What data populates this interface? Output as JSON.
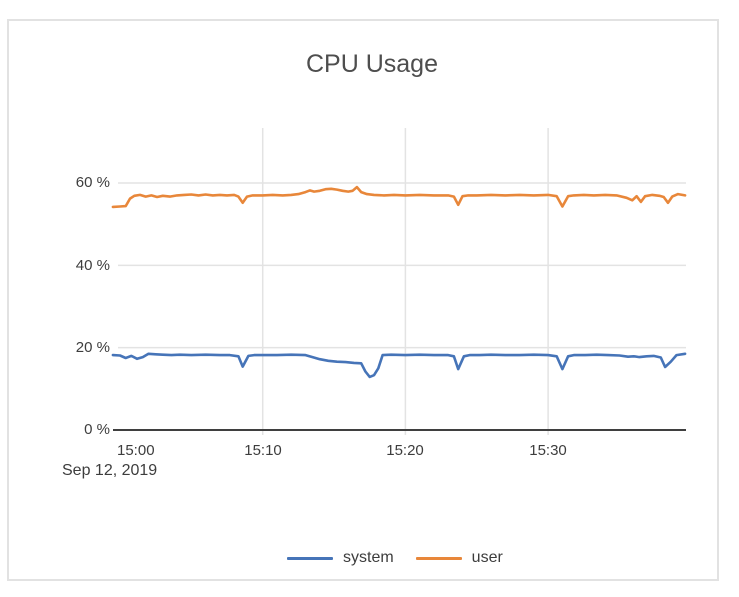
{
  "panel": {
    "background": "#ffffff",
    "border_color": "#e2e2e2"
  },
  "chart_data": {
    "type": "line",
    "title": "CPU Usage",
    "xlabel": "",
    "ylabel": "",
    "date_label": "Sep 12, 2019",
    "grid": true,
    "legend_position": "bottom",
    "ylim": [
      0,
      65
    ],
    "x_range_minutes_from_15_00": [
      -0.5,
      39.6
    ],
    "x_ticks": [
      {
        "t": 0,
        "label": "15:00"
      },
      {
        "t": 10,
        "label": "15:10"
      },
      {
        "t": 20,
        "label": "15:20"
      },
      {
        "t": 30,
        "label": "15:30"
      }
    ],
    "y_ticks": [
      {
        "v": 0,
        "label": "0 %"
      },
      {
        "v": 20,
        "label": "20 %"
      },
      {
        "v": 40,
        "label": "40 %"
      },
      {
        "v": 60,
        "label": "60 %"
      }
    ],
    "axis_color": "#3f3f3f",
    "gridline_color": "#e3e3e3",
    "series": [
      {
        "name": "system",
        "color": "#4674b8",
        "points": [
          [
            -0.5,
            18.2
          ],
          [
            0,
            18.1
          ],
          [
            0.4,
            17.5
          ],
          [
            0.8,
            18.0
          ],
          [
            1.2,
            17.3
          ],
          [
            1.6,
            17.7
          ],
          [
            2,
            18.5
          ],
          [
            2.5,
            18.4
          ],
          [
            3,
            18.3
          ],
          [
            3.6,
            18.2
          ],
          [
            4.2,
            18.3
          ],
          [
            5,
            18.2
          ],
          [
            6,
            18.3
          ],
          [
            7,
            18.2
          ],
          [
            7.7,
            18.2
          ],
          [
            8.3,
            17.9
          ],
          [
            8.6,
            15.4
          ],
          [
            9,
            18.0
          ],
          [
            9.4,
            18.2
          ],
          [
            10,
            18.2
          ],
          [
            11,
            18.2
          ],
          [
            12,
            18.3
          ],
          [
            13,
            18.2
          ],
          [
            13.4,
            17.8
          ],
          [
            14,
            17.2
          ],
          [
            14.6,
            16.8
          ],
          [
            15.2,
            16.6
          ],
          [
            15.8,
            16.5
          ],
          [
            16.4,
            16.3
          ],
          [
            16.9,
            16.2
          ],
          [
            17.2,
            14.2
          ],
          [
            17.5,
            12.9
          ],
          [
            17.8,
            13.3
          ],
          [
            18.1,
            15.0
          ],
          [
            18.4,
            18.2
          ],
          [
            19,
            18.3
          ],
          [
            20,
            18.2
          ],
          [
            21,
            18.3
          ],
          [
            22,
            18.2
          ],
          [
            23,
            18.2
          ],
          [
            23.4,
            17.9
          ],
          [
            23.7,
            14.8
          ],
          [
            24.1,
            17.9
          ],
          [
            24.5,
            18.2
          ],
          [
            25.2,
            18.2
          ],
          [
            26,
            18.3
          ],
          [
            27,
            18.2
          ],
          [
            28,
            18.2
          ],
          [
            29,
            18.3
          ],
          [
            30,
            18.2
          ],
          [
            30.6,
            17.9
          ],
          [
            31,
            14.8
          ],
          [
            31.4,
            17.9
          ],
          [
            31.8,
            18.2
          ],
          [
            32.6,
            18.2
          ],
          [
            33.4,
            18.3
          ],
          [
            34.2,
            18.2
          ],
          [
            35,
            18.1
          ],
          [
            35.6,
            17.8
          ],
          [
            36,
            17.9
          ],
          [
            36.4,
            17.7
          ],
          [
            36.9,
            17.9
          ],
          [
            37.4,
            18.0
          ],
          [
            37.9,
            17.6
          ],
          [
            38.2,
            15.3
          ],
          [
            38.6,
            16.6
          ],
          [
            39,
            18.2
          ],
          [
            39.6,
            18.5
          ]
        ]
      },
      {
        "name": "user",
        "color": "#e8873a",
        "points": [
          [
            -0.5,
            54.2
          ],
          [
            0,
            54.3
          ],
          [
            0.4,
            54.4
          ],
          [
            0.7,
            56.2
          ],
          [
            1,
            56.9
          ],
          [
            1.4,
            57.1
          ],
          [
            1.8,
            56.7
          ],
          [
            2.2,
            57.0
          ],
          [
            2.6,
            56.6
          ],
          [
            3,
            56.9
          ],
          [
            3.5,
            56.7
          ],
          [
            4,
            57.0
          ],
          [
            4.5,
            57.1
          ],
          [
            5,
            57.2
          ],
          [
            5.5,
            57.0
          ],
          [
            6,
            57.2
          ],
          [
            6.5,
            57.0
          ],
          [
            7,
            57.1
          ],
          [
            7.5,
            57.0
          ],
          [
            8,
            57.1
          ],
          [
            8.3,
            56.7
          ],
          [
            8.6,
            55.2
          ],
          [
            8.9,
            56.7
          ],
          [
            9.3,
            57.0
          ],
          [
            10,
            57.0
          ],
          [
            10.7,
            57.1
          ],
          [
            11.4,
            57.0
          ],
          [
            12,
            57.1
          ],
          [
            12.5,
            57.3
          ],
          [
            13,
            57.8
          ],
          [
            13.3,
            58.2
          ],
          [
            13.6,
            57.9
          ],
          [
            14,
            58.1
          ],
          [
            14.4,
            58.5
          ],
          [
            14.8,
            58.6
          ],
          [
            15.2,
            58.4
          ],
          [
            15.6,
            58.1
          ],
          [
            16,
            57.9
          ],
          [
            16.3,
            58.1
          ],
          [
            16.6,
            59.0
          ],
          [
            16.9,
            57.8
          ],
          [
            17.3,
            57.3
          ],
          [
            17.8,
            57.1
          ],
          [
            18.5,
            57.0
          ],
          [
            19.2,
            57.1
          ],
          [
            20,
            57.0
          ],
          [
            21,
            57.1
          ],
          [
            22,
            57.0
          ],
          [
            23,
            57.0
          ],
          [
            23.4,
            56.7
          ],
          [
            23.7,
            54.7
          ],
          [
            24,
            56.8
          ],
          [
            24.4,
            57.0
          ],
          [
            25,
            57.0
          ],
          [
            26,
            57.1
          ],
          [
            27,
            57.0
          ],
          [
            28,
            57.1
          ],
          [
            29,
            57.0
          ],
          [
            30,
            57.1
          ],
          [
            30.6,
            56.8
          ],
          [
            31,
            54.3
          ],
          [
            31.4,
            56.8
          ],
          [
            31.8,
            57.0
          ],
          [
            32.5,
            57.1
          ],
          [
            33.2,
            57.0
          ],
          [
            34,
            57.1
          ],
          [
            34.8,
            57.0
          ],
          [
            35.5,
            56.4
          ],
          [
            35.9,
            55.8
          ],
          [
            36.2,
            56.8
          ],
          [
            36.5,
            55.4
          ],
          [
            36.8,
            56.8
          ],
          [
            37.3,
            57.1
          ],
          [
            37.8,
            56.9
          ],
          [
            38.1,
            56.6
          ],
          [
            38.4,
            55.2
          ],
          [
            38.7,
            56.7
          ],
          [
            39.1,
            57.3
          ],
          [
            39.6,
            57.0
          ]
        ]
      }
    ]
  }
}
